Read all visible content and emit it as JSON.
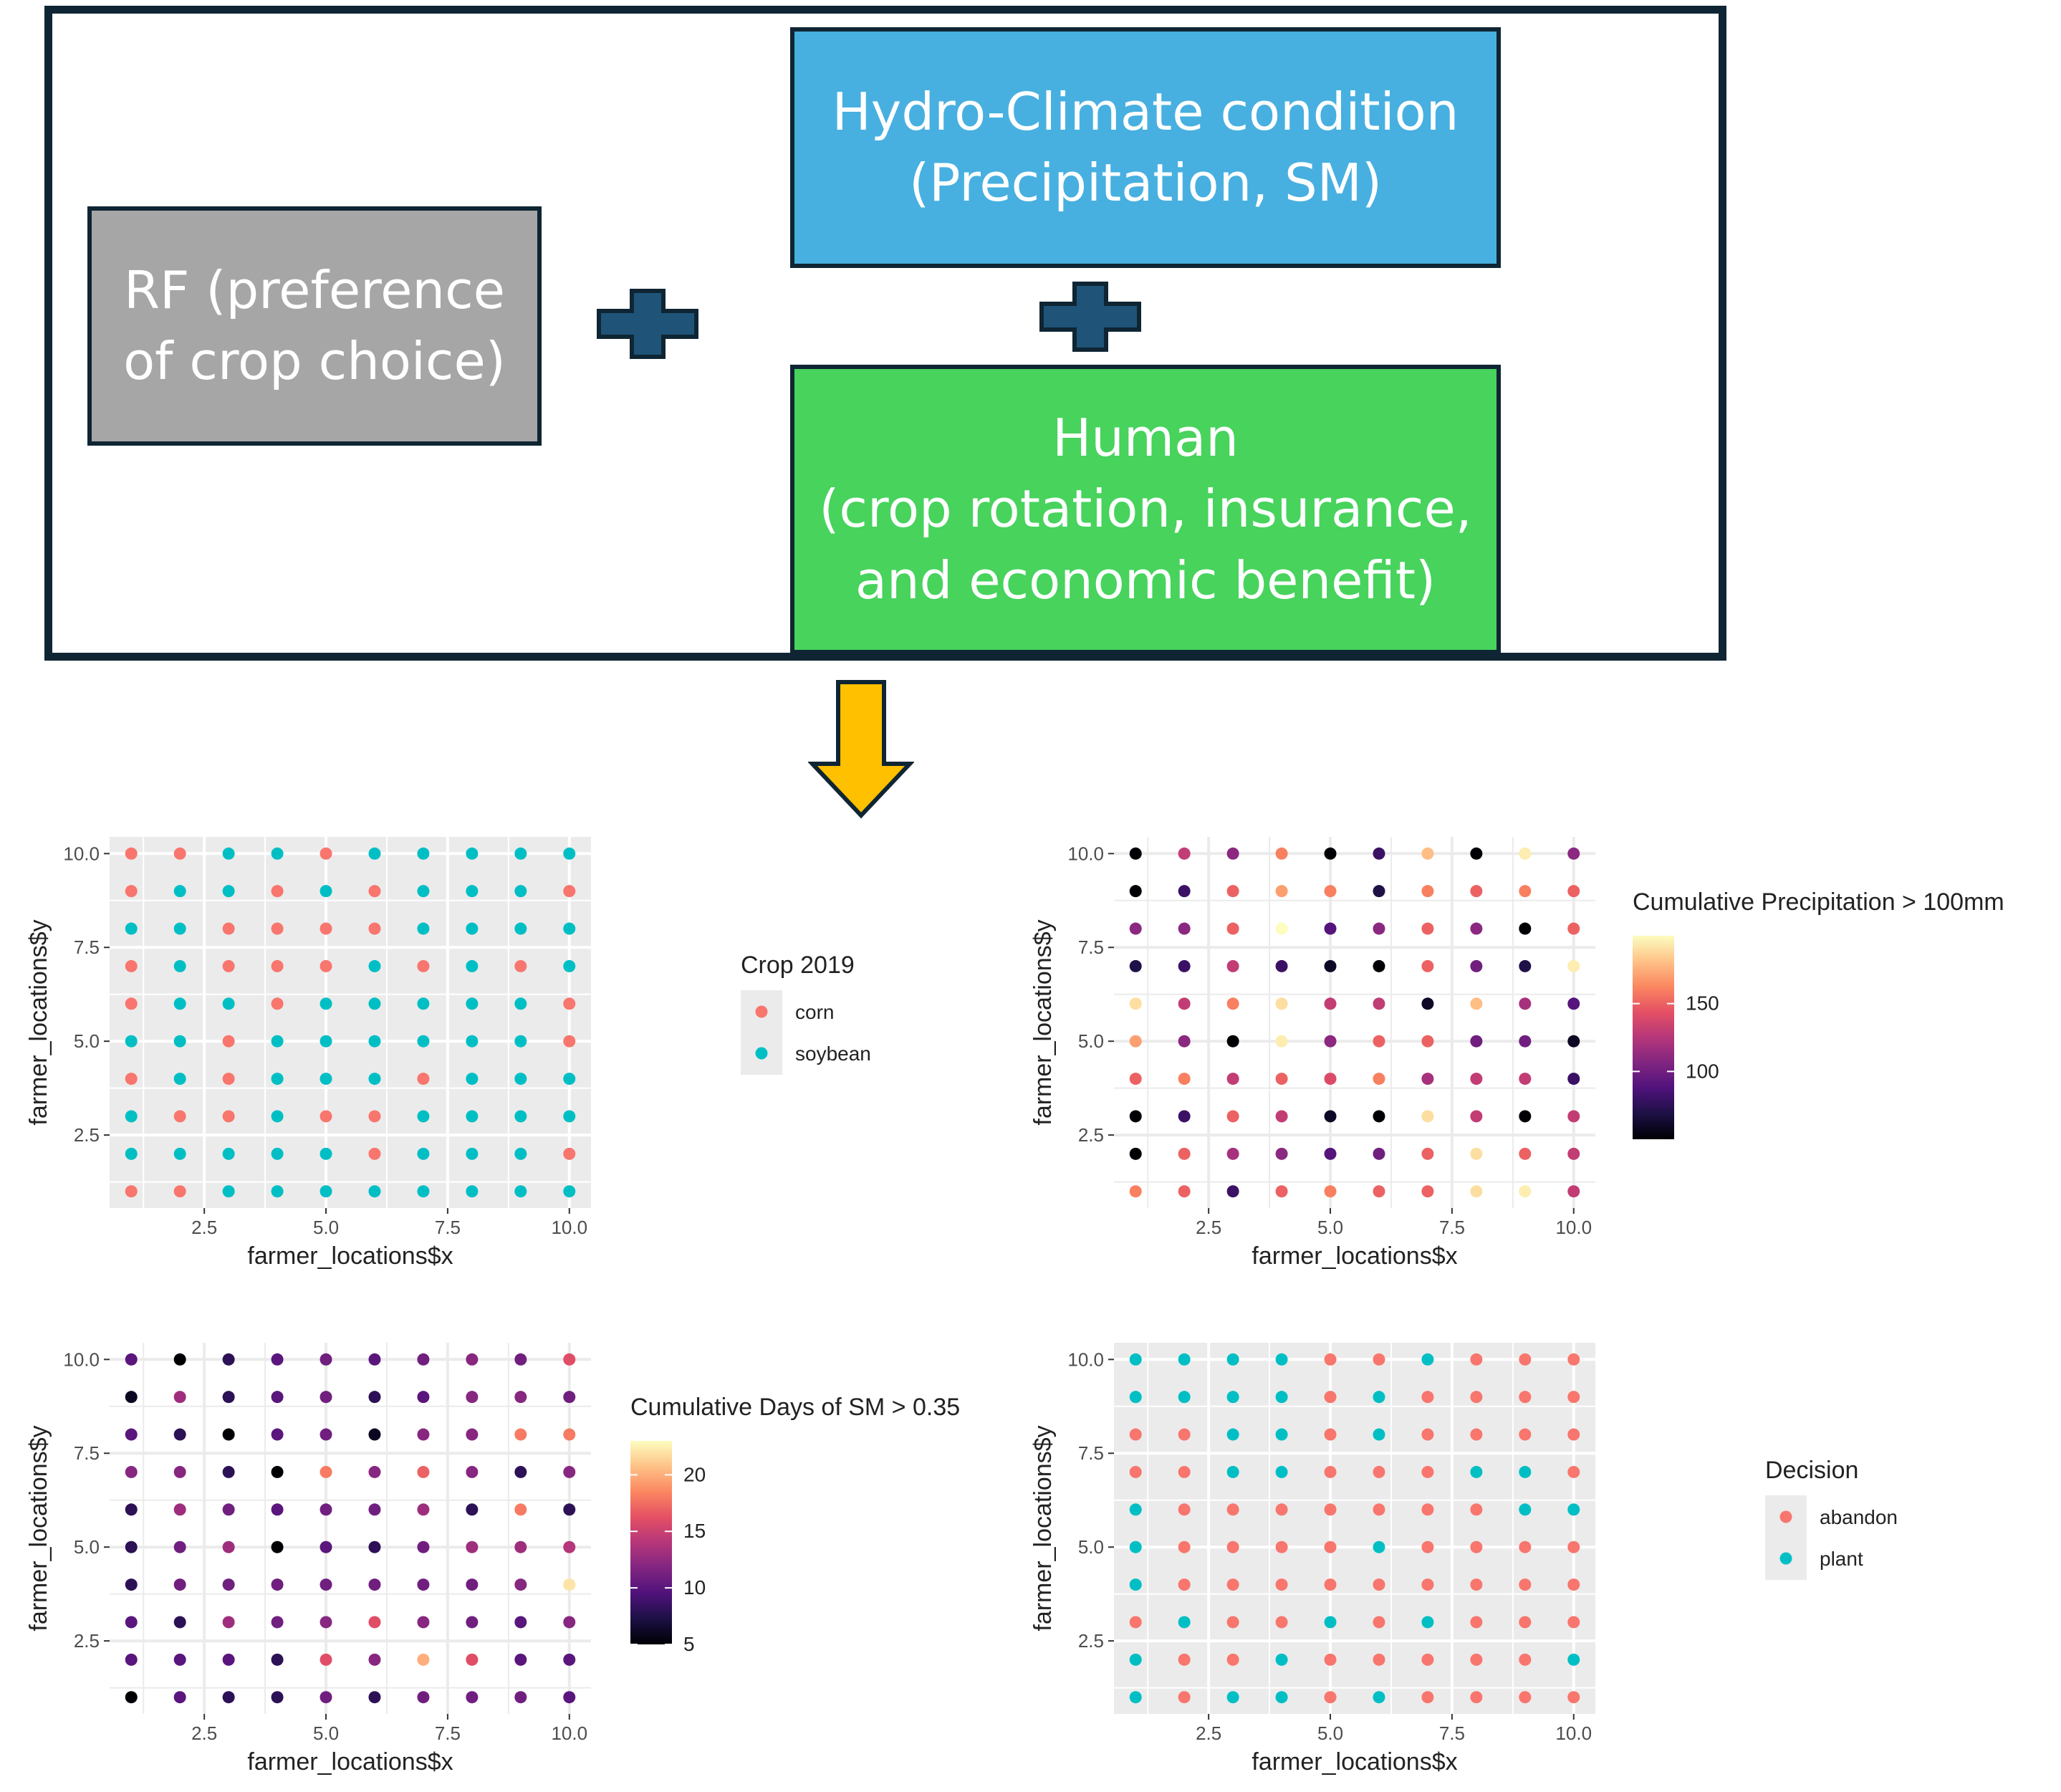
{
  "diagram": {
    "rf_box": {
      "lines": [
        "RF (preference",
        "of crop choice)"
      ],
      "color": "#a6a6a6"
    },
    "hydro_box": {
      "lines": [
        "Hydro-Climate condition",
        "(Precipitation, SM)"
      ],
      "color": "#47b0e0"
    },
    "human_box": {
      "lines": [
        "Human",
        "(crop rotation, insurance,",
        "and economic benefit)"
      ],
      "color": "#47d35c"
    },
    "plus_color": "#1f5478",
    "arrow_color": "#ffc000"
  },
  "chart_data": [
    {
      "type": "scatter",
      "title": "",
      "xlabel": "farmer_locations$x",
      "ylabel": "farmer_locations$y",
      "xlim": [
        1,
        10
      ],
      "ylim": [
        1,
        10
      ],
      "xticks": [
        "2.5",
        "5.0",
        "7.5",
        "10.0"
      ],
      "yticks": [
        "2.5",
        "5.0",
        "7.5",
        "10.0"
      ],
      "grid": true,
      "legend": {
        "title": "Crop 2019",
        "position": "right",
        "keys": [
          {
            "label": "corn",
            "color": "#f8766d"
          },
          {
            "label": "soybean",
            "color": "#00bfc4"
          }
        ]
      },
      "x": [
        1,
        2,
        3,
        4,
        5,
        6,
        7,
        8,
        9,
        10
      ],
      "y": [
        10,
        9,
        8,
        7,
        6,
        5,
        4,
        3,
        2,
        1
      ],
      "values": [
        [
          "corn",
          "corn",
          "soybean",
          "soybean",
          "corn",
          "soybean",
          "soybean",
          "soybean",
          "soybean",
          "soybean"
        ],
        [
          "corn",
          "soybean",
          "soybean",
          "corn",
          "soybean",
          "corn",
          "soybean",
          "soybean",
          "soybean",
          "corn"
        ],
        [
          "soybean",
          "soybean",
          "corn",
          "corn",
          "corn",
          "corn",
          "soybean",
          "soybean",
          "soybean",
          "soybean"
        ],
        [
          "corn",
          "soybean",
          "corn",
          "corn",
          "corn",
          "soybean",
          "corn",
          "soybean",
          "corn",
          "soybean"
        ],
        [
          "corn",
          "soybean",
          "soybean",
          "corn",
          "soybean",
          "soybean",
          "soybean",
          "soybean",
          "soybean",
          "corn"
        ],
        [
          "soybean",
          "soybean",
          "corn",
          "soybean",
          "soybean",
          "soybean",
          "soybean",
          "soybean",
          "soybean",
          "corn"
        ],
        [
          "corn",
          "soybean",
          "corn",
          "soybean",
          "soybean",
          "soybean",
          "corn",
          "soybean",
          "soybean",
          "soybean"
        ],
        [
          "soybean",
          "corn",
          "corn",
          "soybean",
          "corn",
          "corn",
          "soybean",
          "soybean",
          "soybean",
          "soybean"
        ],
        [
          "soybean",
          "soybean",
          "soybean",
          "soybean",
          "soybean",
          "corn",
          "soybean",
          "soybean",
          "soybean",
          "corn"
        ],
        [
          "corn",
          "corn",
          "soybean",
          "soybean",
          "soybean",
          "soybean",
          "soybean",
          "soybean",
          "soybean",
          "soybean"
        ]
      ]
    },
    {
      "type": "scatter",
      "title": "",
      "xlabel": "farmer_locations$x",
      "ylabel": "farmer_locations$y",
      "xlim": [
        1,
        10
      ],
      "ylim": [
        1,
        10
      ],
      "xticks": [
        "2.5",
        "5.0",
        "7.5",
        "10.0"
      ],
      "yticks": [
        "2.5",
        "5.0",
        "7.5",
        "10.0"
      ],
      "grid": true,
      "colorscale": "magma",
      "legend": {
        "title": "Cumulative Precipitation > 100mm",
        "position": "right",
        "range": [
          50,
          200
        ],
        "ticks": [
          100,
          150
        ]
      },
      "x": [
        1,
        2,
        3,
        4,
        5,
        6,
        7,
        8,
        9,
        10
      ],
      "y": [
        10,
        9,
        8,
        7,
        6,
        5,
        4,
        3,
        2,
        1
      ],
      "values": [
        [
          50,
          130,
          110,
          160,
          50,
          80,
          180,
          50,
          195,
          110
        ],
        [
          50,
          80,
          150,
          170,
          160,
          70,
          160,
          150,
          160,
          150
        ],
        [
          110,
          110,
          150,
          200,
          90,
          110,
          150,
          110,
          50,
          150
        ],
        [
          70,
          80,
          130,
          80,
          60,
          50,
          150,
          100,
          70,
          195
        ],
        [
          190,
          130,
          160,
          190,
          130,
          130,
          60,
          180,
          120,
          90
        ],
        [
          170,
          110,
          50,
          195,
          110,
          150,
          150,
          100,
          100,
          60
        ],
        [
          150,
          160,
          130,
          150,
          140,
          160,
          120,
          130,
          130,
          80
        ],
        [
          50,
          80,
          150,
          130,
          60,
          50,
          190,
          130,
          50,
          130
        ],
        [
          50,
          150,
          120,
          110,
          90,
          100,
          150,
          190,
          150,
          130
        ],
        [
          160,
          150,
          80,
          150,
          160,
          150,
          150,
          190,
          195,
          130
        ]
      ]
    },
    {
      "type": "scatter",
      "title": "",
      "xlabel": "farmer_locations$x",
      "ylabel": "farmer_locations$y",
      "xlim": [
        1,
        10
      ],
      "ylim": [
        1,
        10
      ],
      "xticks": [
        "2.5",
        "5.0",
        "7.5",
        "10.0"
      ],
      "yticks": [
        "2.5",
        "5.0",
        "7.5",
        "10.0"
      ],
      "grid": true,
      "colorscale": "magma",
      "legend": {
        "title": "Cumulative Days of SM > 0.35",
        "position": "right",
        "range": [
          5,
          23
        ],
        "ticks": [
          5,
          10,
          15,
          20
        ]
      },
      "x": [
        1,
        2,
        3,
        4,
        5,
        6,
        7,
        8,
        9,
        10
      ],
      "y": [
        10,
        9,
        8,
        7,
        6,
        5,
        4,
        3,
        2,
        1
      ],
      "values": [
        [
          10,
          5,
          8,
          10,
          11,
          10,
          11,
          12,
          11,
          16
        ],
        [
          6,
          13,
          8,
          10,
          11,
          8,
          10,
          12,
          12,
          11
        ],
        [
          10,
          8,
          5,
          10,
          11,
          6,
          12,
          12,
          18,
          18
        ],
        [
          12,
          12,
          8,
          5,
          18,
          12,
          17,
          12,
          8,
          12
        ],
        [
          8,
          13,
          11,
          10,
          11,
          11,
          13,
          8,
          18,
          8
        ],
        [
          8,
          11,
          13,
          5,
          10,
          8,
          11,
          13,
          13,
          14
        ],
        [
          8,
          11,
          11,
          11,
          11,
          11,
          11,
          11,
          12,
          22
        ],
        [
          10,
          8,
          13,
          11,
          12,
          16,
          12,
          11,
          10,
          12
        ],
        [
          10,
          10,
          10,
          8,
          16,
          12,
          20,
          16,
          10,
          10
        ],
        [
          5,
          10,
          8,
          8,
          11,
          8,
          11,
          11,
          11,
          10
        ]
      ]
    },
    {
      "type": "scatter",
      "title": "",
      "xlabel": "farmer_locations$x",
      "ylabel": "farmer_locations$y",
      "xlim": [
        1,
        10
      ],
      "ylim": [
        1,
        10
      ],
      "xticks": [
        "2.5",
        "5.0",
        "7.5",
        "10.0"
      ],
      "yticks": [
        "2.5",
        "5.0",
        "7.5",
        "10.0"
      ],
      "grid": true,
      "legend": {
        "title": "Decision",
        "position": "right",
        "keys": [
          {
            "label": "abandon",
            "color": "#f8766d"
          },
          {
            "label": "plant",
            "color": "#00bfc4"
          }
        ]
      },
      "x": [
        1,
        2,
        3,
        4,
        5,
        6,
        7,
        8,
        9,
        10
      ],
      "y": [
        10,
        9,
        8,
        7,
        6,
        5,
        4,
        3,
        2,
        1
      ],
      "values": [
        [
          "plant",
          "plant",
          "plant",
          "plant",
          "abandon",
          "abandon",
          "plant",
          "abandon",
          "abandon",
          "abandon"
        ],
        [
          "plant",
          "plant",
          "plant",
          "plant",
          "abandon",
          "plant",
          "abandon",
          "abandon",
          "abandon",
          "abandon"
        ],
        [
          "abandon",
          "abandon",
          "plant",
          "plant",
          "abandon",
          "plant",
          "abandon",
          "abandon",
          "abandon",
          "abandon"
        ],
        [
          "abandon",
          "abandon",
          "plant",
          "plant",
          "abandon",
          "abandon",
          "abandon",
          "plant",
          "plant",
          "abandon"
        ],
        [
          "plant",
          "abandon",
          "abandon",
          "abandon",
          "abandon",
          "abandon",
          "abandon",
          "abandon",
          "plant",
          "plant"
        ],
        [
          "plant",
          "abandon",
          "abandon",
          "abandon",
          "abandon",
          "plant",
          "abandon",
          "abandon",
          "abandon",
          "abandon"
        ],
        [
          "plant",
          "abandon",
          "abandon",
          "abandon",
          "abandon",
          "abandon",
          "abandon",
          "abandon",
          "abandon",
          "abandon"
        ],
        [
          "abandon",
          "plant",
          "abandon",
          "abandon",
          "plant",
          "abandon",
          "plant",
          "abandon",
          "abandon",
          "abandon"
        ],
        [
          "plant",
          "abandon",
          "abandon",
          "plant",
          "abandon",
          "abandon",
          "abandon",
          "abandon",
          "abandon",
          "plant"
        ],
        [
          "plant",
          "abandon",
          "plant",
          "plant",
          "abandon",
          "plant",
          "abandon",
          "abandon",
          "abandon",
          "abandon"
        ]
      ]
    }
  ]
}
